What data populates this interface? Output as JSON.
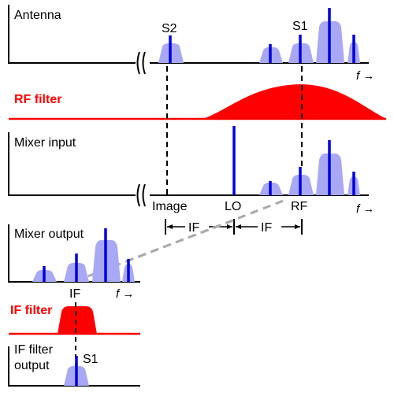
{
  "panels": {
    "antenna": {
      "label": "Antenna"
    },
    "rf_filter": {
      "label": "RF filter"
    },
    "mixer_input": {
      "label": "Mixer input"
    },
    "mixer_output": {
      "label": "Mixer output"
    },
    "if_filter": {
      "label": "IF filter"
    },
    "if_filter_output": {
      "label_line1": "IF filter",
      "label_line2": "output"
    }
  },
  "signals": {
    "s1": "S1",
    "s2": "S2"
  },
  "axis_labels": {
    "image": "Image",
    "lo": "LO",
    "rf": "RF",
    "if": "IF",
    "frequency": "f →"
  },
  "colors": {
    "signal": "#0000dd",
    "spectrum_fill": "#a8a8f5",
    "filter": "#ff0000",
    "axis": "#000000",
    "dash": "#aaaaaa"
  }
}
